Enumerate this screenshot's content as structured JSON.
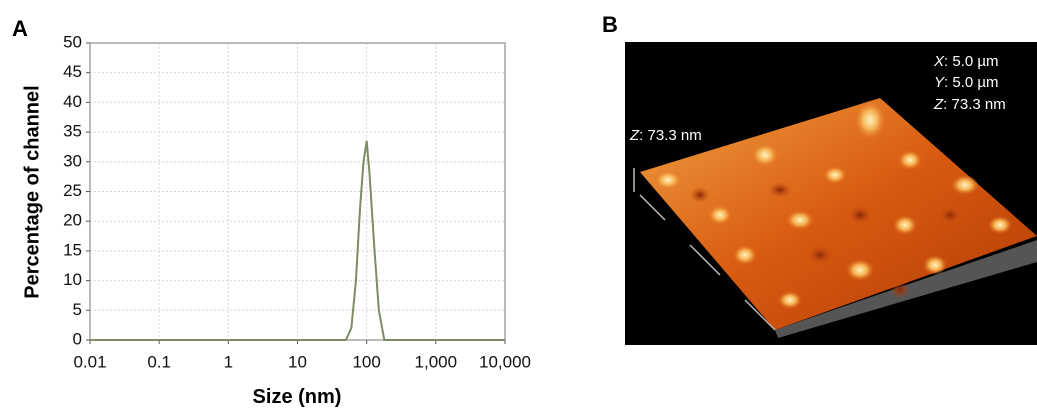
{
  "chart_data": {
    "type": "line",
    "panel_label": "A",
    "xlabel": "Size (nm)",
    "ylabel": "Percentage of channel",
    "x": [
      0.01,
      50,
      60,
      70,
      80,
      90,
      100,
      110,
      130,
      150,
      180,
      10000
    ],
    "values": [
      0,
      0,
      2,
      10,
      22,
      30,
      33.5,
      28,
      15,
      5,
      0,
      0
    ],
    "color": "#7d8c62",
    "log_x": true,
    "grid": true,
    "xlim": [
      0.01,
      10000
    ],
    "xticks": [
      0.01,
      0.1,
      1,
      10,
      100,
      {
        "value": 1000,
        "label": "1,000"
      },
      {
        "value": 10000,
        "label": "10,000"
      }
    ],
    "ylim": [
      0,
      50
    ],
    "yticks": [
      0,
      5,
      10,
      15,
      20,
      25,
      30,
      35,
      40,
      45,
      50
    ]
  },
  "image_panel": {
    "label": "B",
    "annotations": [
      {
        "axis": "X",
        "text": ": 5.0 µm"
      },
      {
        "axis": "Y",
        "text": ": 5.0 µm"
      },
      {
        "axis": "Z",
        "text": ": 73.3 nm"
      }
    ],
    "z_scale": {
      "axis": "Z",
      "text": ": 73.3 nm"
    }
  }
}
